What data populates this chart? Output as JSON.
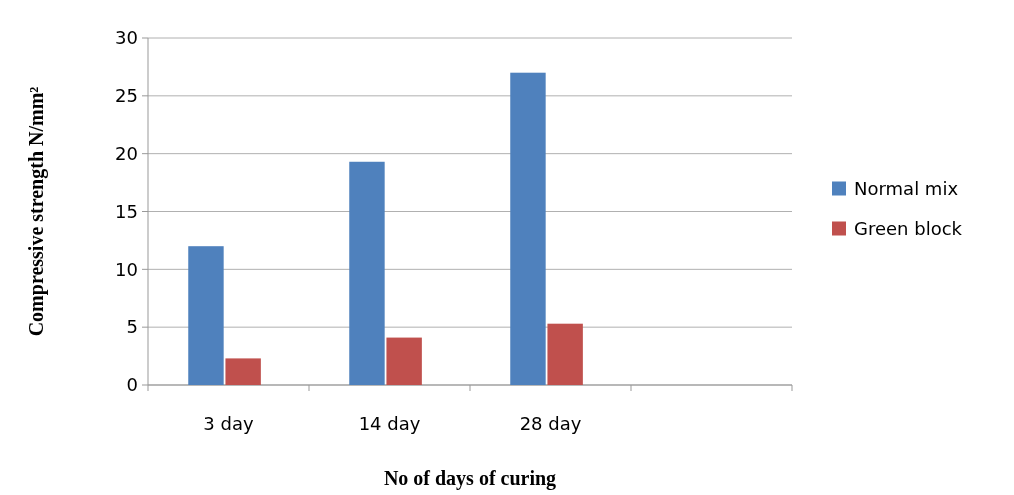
{
  "chart_data": {
    "type": "bar",
    "xlabel": "No of days of curing",
    "ylabel": "Compressive strength N/mm²",
    "categories": [
      "3 day",
      "14 day",
      "28 day",
      null
    ],
    "series": [
      {
        "name": "Normal mix",
        "color": "#4f81bd",
        "values": [
          12,
          19.3,
          27,
          null
        ]
      },
      {
        "name": "Green block",
        "color": "#c0504d",
        "values": [
          2.3,
          4.1,
          5.3,
          null
        ]
      }
    ],
    "ylim": [
      0,
      30
    ],
    "yticks": [
      0,
      5,
      10,
      15,
      20,
      25,
      30
    ],
    "grid": "y",
    "legend": "right"
  }
}
